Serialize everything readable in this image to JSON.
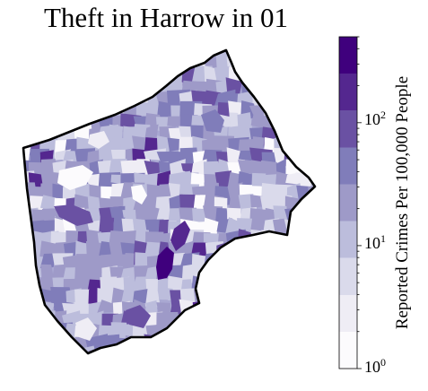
{
  "title": "Theft in Harrow in 01",
  "colorbar": {
    "label": "Reported Crimes Per 100,000 People",
    "scale": "log",
    "range": [
      1,
      500
    ],
    "ticks": [
      {
        "base": "10",
        "exp": "0",
        "value": 1
      },
      {
        "base": "10",
        "exp": "1",
        "value": 10
      },
      {
        "base": "10",
        "exp": "2",
        "value": 100
      }
    ],
    "colormap": [
      "#fcfbfd",
      "#efedf5",
      "#dadaeb",
      "#bcbddc",
      "#9e9ac8",
      "#807dba",
      "#6a51a3",
      "#54278f",
      "#3f007d"
    ]
  },
  "map": {
    "borough": "Harrow",
    "boundary_color": "#000000",
    "base_color": "#a9a8d2"
  }
}
